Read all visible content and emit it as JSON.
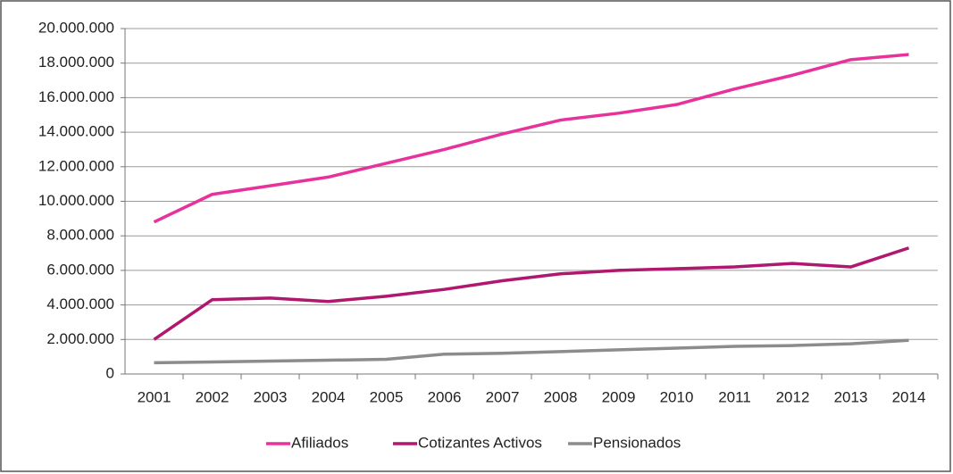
{
  "chart_data": {
    "type": "line",
    "categories": [
      "2001",
      "2002",
      "2003",
      "2004",
      "2005",
      "2006",
      "2007",
      "2008",
      "2009",
      "2010",
      "2011",
      "2012",
      "2013",
      "2014"
    ],
    "series": [
      {
        "name": "Afiliados",
        "color": "#e8329b",
        "values": [
          8800000,
          10400000,
          10900000,
          11400000,
          12200000,
          13000000,
          13900000,
          14700000,
          15100000,
          15600000,
          16500000,
          17300000,
          18200000,
          18500000
        ]
      },
      {
        "name": "Cotizantes Activos",
        "color": "#b0176f",
        "values": [
          2000000,
          4300000,
          4400000,
          4200000,
          4500000,
          4900000,
          5400000,
          5800000,
          6000000,
          6100000,
          6200000,
          6400000,
          6200000,
          7300000
        ]
      },
      {
        "name": "Pensionados",
        "color": "#8c8c8c",
        "values": [
          650000,
          700000,
          750000,
          800000,
          850000,
          1150000,
          1200000,
          1300000,
          1400000,
          1500000,
          1600000,
          1650000,
          1750000,
          1950000
        ]
      }
    ],
    "ylim": [
      0,
      20000000
    ],
    "yticks": [
      0,
      {
        "value": 2000000,
        "label": "2.000.000"
      },
      {
        "value": 4000000,
        "label": "4.000.000"
      },
      {
        "value": 6000000,
        "label": "6.000.000"
      },
      {
        "value": 8000000,
        "label": "8.000.000"
      },
      {
        "value": 10000000,
        "label": "10.000.000"
      },
      {
        "value": 12000000,
        "label": "12.000.000"
      },
      {
        "value": 14000000,
        "label": "14.000.000"
      },
      {
        "value": 16000000,
        "label": "16.000.000"
      },
      {
        "value": 18000000,
        "label": "18.000.000"
      },
      {
        "value": 20000000,
        "label": "20.000.000"
      }
    ],
    "grid": true,
    "legend": "bottom"
  }
}
